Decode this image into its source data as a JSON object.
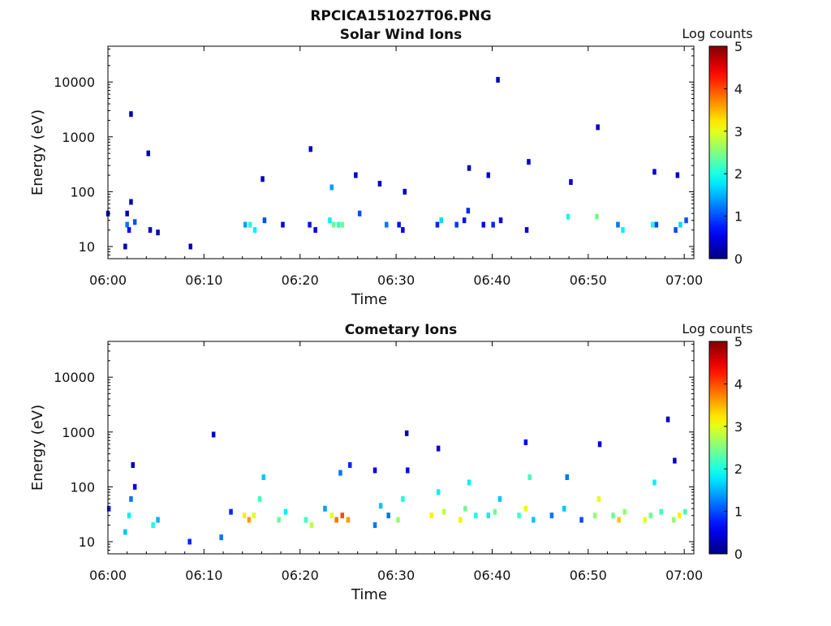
{
  "figure_title": "RPCICA151027T06.PNG",
  "chart_data": [
    {
      "type": "heatmap",
      "title": "Solar Wind Ions",
      "xlabel": "Time",
      "ylabel": "Energy (eV)",
      "x_ticks": [
        "06:00",
        "06:10",
        "06:20",
        "06:30",
        "06:40",
        "06:50",
        "07:00"
      ],
      "x_range_minutes": [
        0,
        61
      ],
      "y_scale": "log",
      "y_ticks": [
        10,
        100,
        1000,
        10000
      ],
      "y_tick_labels": [
        "10",
        "100",
        "1000",
        "10000"
      ],
      "y_range": [
        6,
        45000
      ],
      "colorbar": {
        "label": "Log counts",
        "range": [
          0,
          5
        ],
        "ticks": [
          "0",
          "1",
          "2",
          "3",
          "4",
          "5"
        ],
        "colormap": "jet"
      },
      "cells": [
        [
          0.0,
          40,
          0.3
        ],
        [
          2.0,
          40,
          0.2
        ],
        [
          2.0,
          25,
          1.2
        ],
        [
          2.2,
          20,
          0.6
        ],
        [
          2.4,
          65,
          0.3
        ],
        [
          1.8,
          10,
          0.2
        ],
        [
          2.8,
          28,
          1.0
        ],
        [
          4.4,
          20,
          0.4
        ],
        [
          5.2,
          18,
          0.3
        ],
        [
          8.6,
          10,
          0.2
        ],
        [
          14.3,
          25,
          1.4
        ],
        [
          14.8,
          25,
          2.0
        ],
        [
          15.3,
          20,
          1.8
        ],
        [
          16.3,
          30,
          1.0
        ],
        [
          18.2,
          25,
          0.5
        ],
        [
          21.0,
          25,
          0.7
        ],
        [
          21.6,
          20,
          0.6
        ],
        [
          23.1,
          30,
          1.8
        ],
        [
          23.5,
          25,
          2.4
        ],
        [
          24.0,
          25,
          2.2
        ],
        [
          24.4,
          25,
          2.4
        ],
        [
          23.3,
          120,
          1.4
        ],
        [
          26.2,
          40,
          1.0
        ],
        [
          29.0,
          25,
          1.2
        ],
        [
          30.3,
          25,
          0.7
        ],
        [
          30.7,
          20,
          0.5
        ],
        [
          34.3,
          25,
          0.8
        ],
        [
          34.7,
          30,
          1.7
        ],
        [
          36.3,
          25,
          0.9
        ],
        [
          37.1,
          30,
          0.7
        ],
        [
          37.5,
          45,
          0.8
        ],
        [
          39.1,
          25,
          0.6
        ],
        [
          40.1,
          25,
          0.8
        ],
        [
          40.9,
          30,
          0.5
        ],
        [
          43.6,
          20,
          0.5
        ],
        [
          47.9,
          35,
          2.0
        ],
        [
          50.9,
          35,
          2.4
        ],
        [
          53.1,
          25,
          1.2
        ],
        [
          53.6,
          20,
          1.8
        ],
        [
          56.7,
          25,
          2.0
        ],
        [
          57.1,
          25,
          1.0
        ],
        [
          59.1,
          20,
          1.0
        ],
        [
          59.6,
          25,
          1.7
        ],
        [
          60.2,
          30,
          1.0
        ],
        [
          2.4,
          2600,
          0.3
        ],
        [
          4.2,
          500,
          0.3
        ],
        [
          21.1,
          600,
          0.3
        ],
        [
          40.6,
          11000,
          0.3
        ],
        [
          51.0,
          1500,
          0.3
        ],
        [
          16.1,
          170,
          0.3
        ],
        [
          25.8,
          200,
          0.3
        ],
        [
          28.3,
          140,
          0.3
        ],
        [
          30.9,
          100,
          0.3
        ],
        [
          37.6,
          270,
          0.3
        ],
        [
          39.6,
          200,
          0.4
        ],
        [
          43.8,
          350,
          0.4
        ],
        [
          48.2,
          150,
          0.4
        ],
        [
          56.9,
          230,
          0.4
        ],
        [
          59.3,
          200,
          0.3
        ]
      ]
    },
    {
      "type": "heatmap",
      "title": "Cometary Ions",
      "xlabel": "Time",
      "ylabel": "Energy (eV)",
      "x_ticks": [
        "06:00",
        "06:10",
        "06:20",
        "06:30",
        "06:40",
        "06:50",
        "07:00"
      ],
      "x_range_minutes": [
        0,
        61
      ],
      "y_scale": "log",
      "y_ticks": [
        10,
        100,
        1000,
        10000
      ],
      "y_tick_labels": [
        "10",
        "100",
        "1000",
        "10000"
      ],
      "y_range": [
        6,
        45000
      ],
      "colorbar": {
        "label": "Log counts",
        "range": [
          0,
          5
        ],
        "ticks": [
          "0",
          "1",
          "2",
          "3",
          "4",
          "5"
        ],
        "colormap": "jet"
      },
      "cells": [
        [
          0.1,
          40,
          0.8
        ],
        [
          1.8,
          15,
          1.6
        ],
        [
          2.2,
          30,
          1.8
        ],
        [
          2.4,
          60,
          1.2
        ],
        [
          2.8,
          100,
          0.6
        ],
        [
          2.6,
          250,
          0.3
        ],
        [
          4.7,
          20,
          2.0
        ],
        [
          5.2,
          25,
          1.5
        ],
        [
          8.5,
          10,
          0.8
        ],
        [
          11.8,
          12,
          1.2
        ],
        [
          12.8,
          35,
          0.8
        ],
        [
          14.2,
          30,
          3.2
        ],
        [
          14.7,
          25,
          3.6
        ],
        [
          15.2,
          30,
          3.0
        ],
        [
          15.8,
          60,
          2.2
        ],
        [
          16.2,
          150,
          1.6
        ],
        [
          17.8,
          25,
          2.4
        ],
        [
          18.5,
          35,
          1.8
        ],
        [
          20.6,
          25,
          2.2
        ],
        [
          21.2,
          20,
          2.8
        ],
        [
          22.6,
          40,
          1.4
        ],
        [
          23.3,
          30,
          3.0
        ],
        [
          23.8,
          25,
          3.8
        ],
        [
          24.4,
          30,
          4.0
        ],
        [
          25.0,
          25,
          3.6
        ],
        [
          24.2,
          180,
          1.2
        ],
        [
          25.2,
          250,
          0.8
        ],
        [
          27.8,
          20,
          1.2
        ],
        [
          28.4,
          45,
          1.6
        ],
        [
          29.2,
          30,
          1.2
        ],
        [
          30.2,
          25,
          2.6
        ],
        [
          30.7,
          60,
          2.0
        ],
        [
          31.2,
          200,
          0.6
        ],
        [
          33.7,
          30,
          3.2
        ],
        [
          34.4,
          80,
          1.8
        ],
        [
          35.0,
          35,
          2.8
        ],
        [
          36.7,
          25,
          3.2
        ],
        [
          37.2,
          40,
          2.4
        ],
        [
          37.6,
          120,
          1.8
        ],
        [
          38.3,
          30,
          2.0
        ],
        [
          39.6,
          30,
          1.8
        ],
        [
          40.3,
          35,
          2.4
        ],
        [
          40.8,
          60,
          1.6
        ],
        [
          42.8,
          30,
          2.2
        ],
        [
          43.5,
          40,
          3.0
        ],
        [
          43.9,
          150,
          2.2
        ],
        [
          44.3,
          25,
          1.6
        ],
        [
          46.2,
          30,
          1.2
        ],
        [
          47.5,
          40,
          1.6
        ],
        [
          47.8,
          150,
          1.2
        ],
        [
          49.3,
          25,
          1.0
        ],
        [
          50.7,
          30,
          2.6
        ],
        [
          51.1,
          60,
          3.0
        ],
        [
          52.6,
          30,
          2.4
        ],
        [
          53.2,
          25,
          3.4
        ],
        [
          53.8,
          35,
          2.6
        ],
        [
          55.9,
          25,
          3.0
        ],
        [
          56.5,
          30,
          2.4
        ],
        [
          56.9,
          120,
          1.8
        ],
        [
          57.6,
          35,
          2.2
        ],
        [
          58.9,
          25,
          2.6
        ],
        [
          59.5,
          30,
          3.2
        ],
        [
          60.1,
          35,
          2.2
        ],
        [
          11.0,
          900,
          0.3
        ],
        [
          31.1,
          950,
          0.3
        ],
        [
          43.5,
          650,
          0.6
        ],
        [
          51.2,
          600,
          0.4
        ],
        [
          58.3,
          1700,
          0.3
        ],
        [
          34.4,
          500,
          0.4
        ],
        [
          27.8,
          200,
          0.5
        ],
        [
          59.0,
          300,
          0.4
        ]
      ]
    }
  ]
}
